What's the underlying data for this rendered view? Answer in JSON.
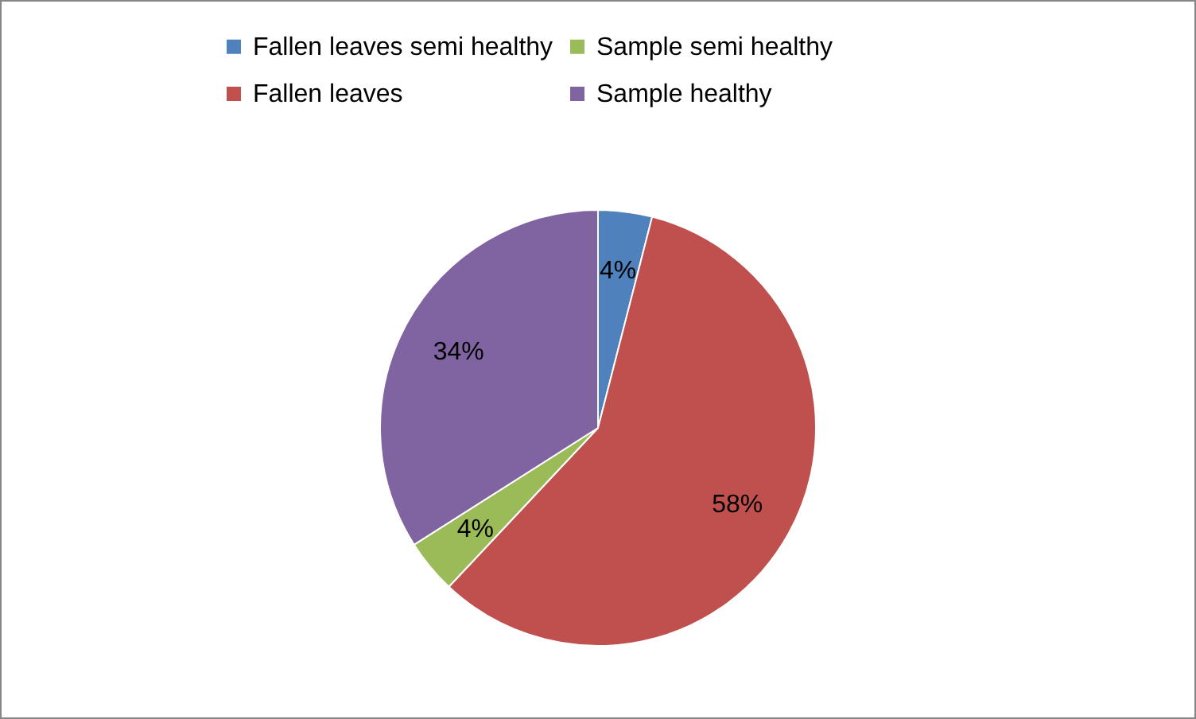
{
  "chart_data": {
    "type": "pie",
    "categories": [
      "Fallen leaves semi healthy",
      "Fallen leaves",
      "Sample semi healthy",
      "Sample healthy"
    ],
    "values": [
      4,
      58,
      4,
      34
    ],
    "colors": [
      "#4f81bd",
      "#c0504d",
      "#9bbb59",
      "#8064a2"
    ],
    "value_labels": [
      "4%",
      "58%",
      "4%",
      "34%"
    ],
    "legend": "top"
  }
}
